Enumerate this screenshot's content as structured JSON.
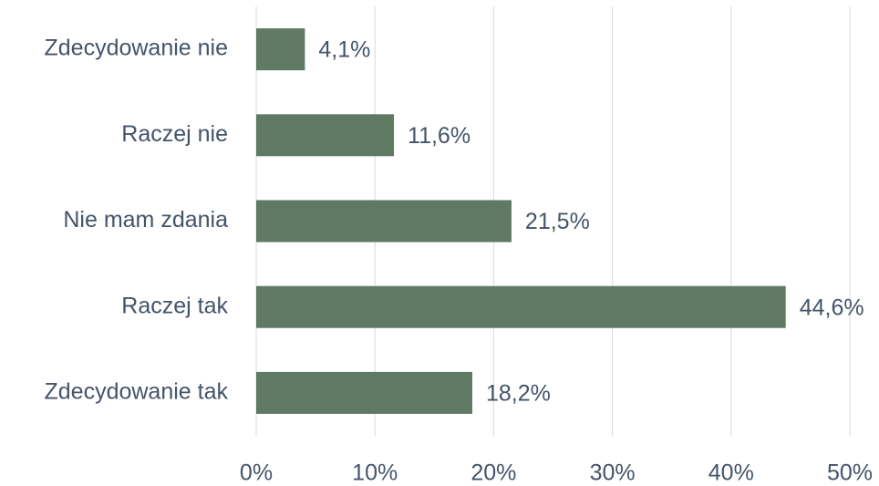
{
  "chart_data": {
    "type": "bar",
    "orientation": "horizontal",
    "categories": [
      "Zdecydowanie nie",
      "Raczej nie",
      "Nie mam zdania",
      "Raczej tak",
      "Zdecydowanie tak"
    ],
    "values": [
      4.1,
      11.6,
      21.5,
      44.6,
      18.2
    ],
    "value_labels": [
      "4,1%",
      "11,6%",
      "21,5%",
      "44,6%",
      "18,2%"
    ],
    "color": "#5e7a62",
    "xlim": [
      0,
      50
    ],
    "xticks": [
      {
        "value": 0,
        "label": "0%"
      },
      {
        "value": 10,
        "label": "10%"
      },
      {
        "value": 20,
        "label": "20%"
      },
      {
        "value": 30,
        "label": "30%"
      },
      {
        "value": 40,
        "label": "40%"
      },
      {
        "value": 50,
        "label": "50%"
      }
    ],
    "grid": true
  }
}
